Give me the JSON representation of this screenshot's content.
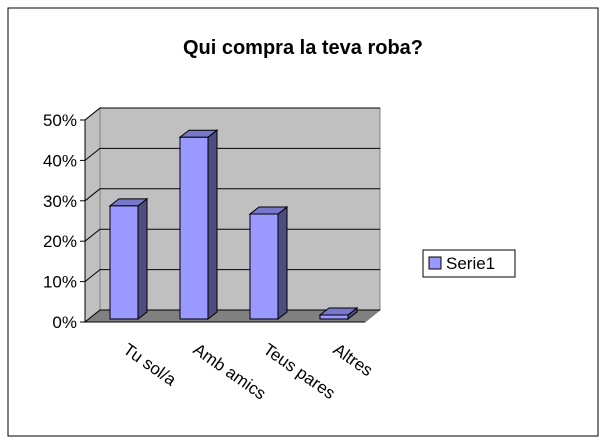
{
  "chart_data": {
    "type": "bar",
    "title": "Qui compra la teva roba?",
    "categories": [
      "Tu sol/a",
      "Amb amics",
      "Teus pares",
      "Altres"
    ],
    "series": [
      {
        "name": "Serie1",
        "color": "#9999ff",
        "values": [
          28,
          45,
          26,
          1
        ]
      }
    ],
    "ylim": [
      0,
      50
    ],
    "yticks": [
      {
        "value": 0,
        "label": "0%"
      },
      {
        "value": 10,
        "label": "10%"
      },
      {
        "value": 20,
        "label": "20%"
      },
      {
        "value": 30,
        "label": "30%"
      },
      {
        "value": 40,
        "label": "40%"
      },
      {
        "value": 50,
        "label": "50%"
      }
    ],
    "grid": true,
    "legend": "right"
  }
}
